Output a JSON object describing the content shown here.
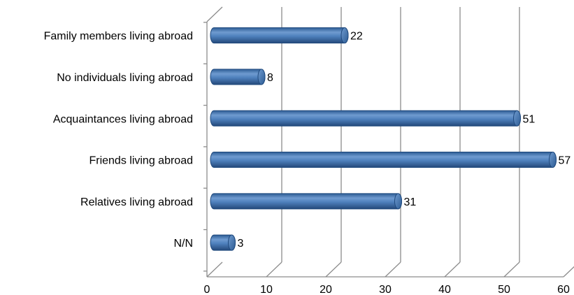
{
  "chart_data": {
    "type": "bar",
    "orientation": "horizontal",
    "style": "3d-cylinder",
    "categories": [
      "Family members living abroad",
      "No individuals living abroad",
      "Acquaintances living abroad",
      "Friends living abroad",
      "Relatives living abroad",
      "N/N"
    ],
    "values": [
      22,
      8,
      51,
      57,
      31,
      3
    ],
    "data_labels": [
      "22",
      "8",
      "51",
      "57",
      "31",
      "3"
    ],
    "xlim": [
      0,
      60
    ],
    "xticks": [
      0,
      10,
      20,
      30,
      40,
      50,
      60
    ],
    "xtick_labels": [
      "0",
      "10",
      "20",
      "30",
      "40",
      "50",
      "60"
    ],
    "title": "",
    "xlabel": "",
    "ylabel": "",
    "grid": "vertical",
    "legend": "none",
    "colors": {
      "bar": "#4f81bd",
      "bar_dark": "#2d5c94",
      "bar_light": "#95b3d7",
      "bar_edge": "#1f497d",
      "grid": "#8c8c8c",
      "axis": "#8c8c8c"
    }
  }
}
